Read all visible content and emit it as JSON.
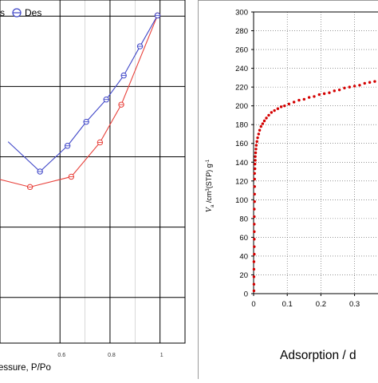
{
  "chart_data": [
    {
      "type": "line",
      "legend": {
        "placement": "top-left",
        "entries": [
          "s",
          "Des"
        ]
      },
      "xlabel": "essure, P/Po",
      "x_ticks": [
        "0.6",
        "0.8",
        "1"
      ],
      "grid": true,
      "series": [
        {
          "name": "s",
          "color": "#e8403a",
          "x": [
            0.48,
            0.645,
            0.76,
            0.845,
            0.99
          ],
          "y": [
            0.455,
            0.485,
            0.585,
            0.695,
            0.955
          ]
        },
        {
          "name": "Des",
          "color": "#3f46c8",
          "x": [
            0.52,
            0.63,
            0.705,
            0.785,
            0.855,
            0.92,
            0.99
          ],
          "y": [
            0.5,
            0.575,
            0.645,
            0.71,
            0.78,
            0.865,
            0.955
          ]
        }
      ]
    },
    {
      "type": "scatter",
      "ylabel_main": "V",
      "ylabel_sub": "a",
      "ylabel_rest": " /cm",
      "ylabel_sup": "3",
      "ylabel_tail": "(STP) g",
      "ylabel_sup2": "-1",
      "xlabel": "Adsorption / d",
      "ylim": [
        0,
        300
      ],
      "y_ticks": [
        "0",
        "20",
        "40",
        "60",
        "80",
        "100",
        "120",
        "140",
        "160",
        "180",
        "200",
        "220",
        "240",
        "260",
        "280",
        "300"
      ],
      "x_ticks": [
        "0",
        "0.1",
        "0.2",
        "0.3"
      ],
      "grid": "dotted",
      "series": [
        {
          "color": "#d40000",
          "x": [
            0.001,
            0.001,
            0.001,
            0.001,
            0.001,
            0.002,
            0.002,
            0.002,
            0.002,
            0.002,
            0.002,
            0.002,
            0.003,
            0.003,
            0.003,
            0.003,
            0.003,
            0.004,
            0.004,
            0.005,
            0.005,
            0.006,
            0.007,
            0.008,
            0.01,
            0.012,
            0.015,
            0.018,
            0.022,
            0.027,
            0.032,
            0.038,
            0.045,
            0.053,
            0.062,
            0.072,
            0.082,
            0.092,
            0.105,
            0.12,
            0.135,
            0.15,
            0.165,
            0.18,
            0.195,
            0.21,
            0.225,
            0.24,
            0.255,
            0.27,
            0.285,
            0.3,
            0.315,
            0.33,
            0.345,
            0.36,
            0.375
          ],
          "y": [
            3,
            10,
            18,
            26,
            34,
            42,
            50,
            58,
            66,
            74,
            82,
            90,
            98,
            106,
            114,
            122,
            128,
            133,
            138,
            142,
            146,
            150,
            154,
            158,
            162,
            166,
            170,
            174,
            178,
            181,
            184,
            187,
            190,
            193,
            195,
            197,
            199,
            200,
            202,
            204,
            206,
            207,
            209,
            210,
            212,
            213,
            214,
            216,
            217,
            219,
            220,
            221,
            222,
            224,
            225,
            226,
            227
          ]
        }
      ]
    }
  ]
}
